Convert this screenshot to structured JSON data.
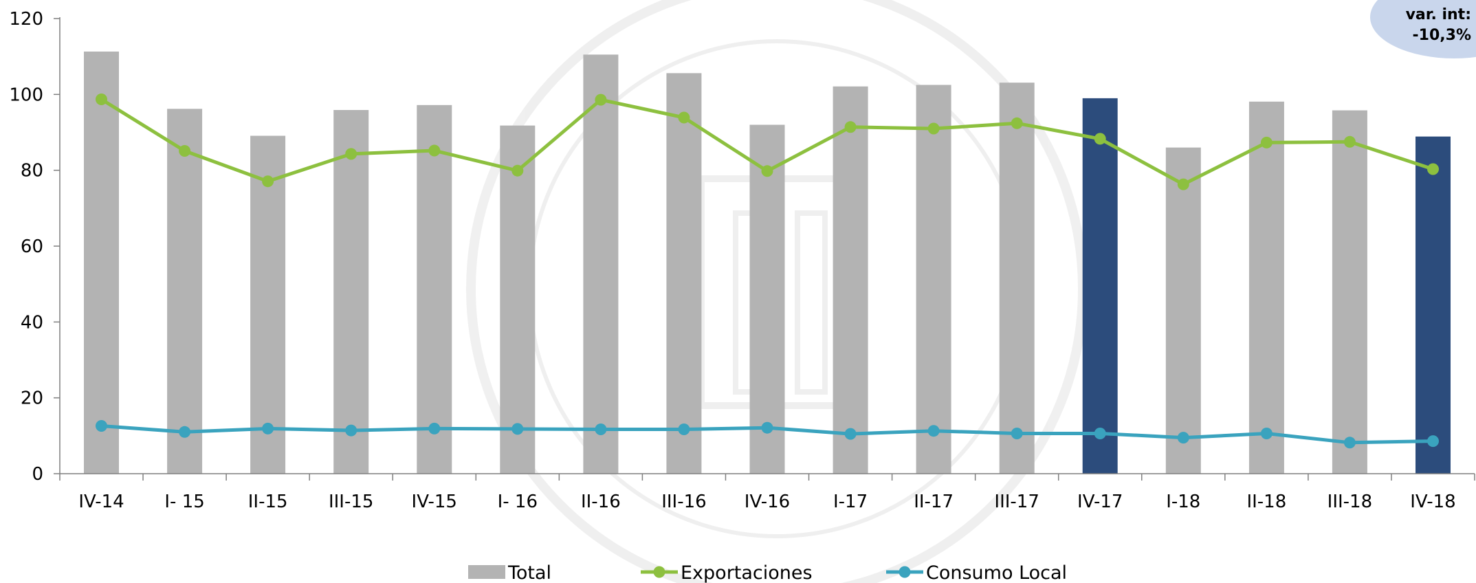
{
  "chart_data": {
    "type": "bar",
    "categories": [
      "IV-14",
      "I- 15",
      "II-15",
      "III-15",
      "IV-15",
      "I- 16",
      "II-16",
      "III-16",
      "IV-16",
      "I-17",
      "II-17",
      "III-17",
      "IV-17",
      "I-18",
      "II-18",
      "III-18",
      "IV-18"
    ],
    "series": [
      {
        "name": "Total",
        "type": "bar",
        "color": "#b3b3b3",
        "highlight_color": "#2c4c7c",
        "highlight_categories": [
          "IV-17",
          "IV-18"
        ],
        "values": [
          111.3,
          96.2,
          89.1,
          95.9,
          97.2,
          91.8,
          110.5,
          105.6,
          92.0,
          102.1,
          102.5,
          103.1,
          99.0,
          86.0,
          98.1,
          95.8,
          88.9
        ]
      },
      {
        "name": "Exportaciones",
        "type": "line",
        "color": "#8dc03f",
        "values": [
          98.7,
          85.1,
          77.1,
          84.3,
          85.2,
          79.9,
          98.6,
          93.9,
          79.8,
          91.4,
          91.0,
          92.4,
          88.3,
          76.3,
          87.3,
          87.5,
          80.3
        ]
      },
      {
        "name": "Consumo Local",
        "type": "line",
        "color": "#3aa3be",
        "values": [
          12.6,
          11.0,
          11.9,
          11.4,
          11.9,
          11.8,
          11.7,
          11.7,
          12.1,
          10.5,
          11.3,
          10.6,
          10.6,
          9.5,
          10.6,
          8.2,
          8.6
        ]
      }
    ],
    "ylim": [
      0,
      120
    ],
    "yticks": [
      0,
      20,
      40,
      60,
      80,
      100,
      120
    ],
    "legend_position": "bottom",
    "annotation": {
      "line1": "var. int:",
      "line2": "-10,3%",
      "color": "#c9d6ec"
    }
  }
}
